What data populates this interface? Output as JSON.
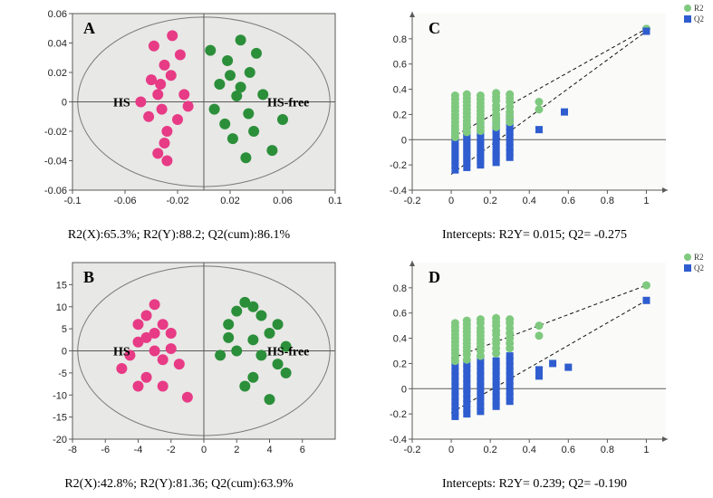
{
  "colors": {
    "bg_scatter": "#e8e8e6",
    "bg_perm": "#fafaf8",
    "pink": "#e73b86",
    "green": "#2b8f3a",
    "green_perm": "#7fc97f",
    "blue_perm": "#2f5dcf",
    "axis": "#5a5a5a",
    "ellipse": "#7a7a7a",
    "dash": "#111111"
  },
  "panelA": {
    "letter": "A",
    "group1_label": "HS",
    "group2_label": "HS-free",
    "caption": "R2(X):65.3%; R2(Y):88.2; Q2(cum):86.1%",
    "xlim": [
      -0.1,
      0.1
    ],
    "ylim": [
      -0.06,
      0.06
    ],
    "xticks": [
      -0.1,
      -0.06,
      -0.02,
      0.02,
      0.06,
      0.1
    ],
    "yticks": [
      -0.06,
      -0.04,
      -0.02,
      0,
      0.02,
      0.04,
      0.06
    ],
    "marker_r": 6,
    "pink_pts": [
      [
        -0.035,
        0.005
      ],
      [
        -0.03,
        -0.028
      ],
      [
        -0.024,
        0.045
      ],
      [
        -0.038,
        0.038
      ],
      [
        -0.032,
        -0.005
      ],
      [
        -0.042,
        -0.01
      ],
      [
        -0.025,
        0.018
      ],
      [
        -0.018,
        0.032
      ],
      [
        -0.028,
        -0.04
      ],
      [
        -0.02,
        -0.012
      ],
      [
        -0.015,
        0.005
      ],
      [
        -0.04,
        0.015
      ],
      [
        -0.035,
        -0.035
      ],
      [
        -0.012,
        -0.003
      ],
      [
        -0.048,
        0.0
      ],
      [
        -0.03,
        0.025
      ],
      [
        -0.033,
        0.012
      ],
      [
        -0.028,
        -0.02
      ]
    ],
    "green_pts": [
      [
        0.025,
        0.004
      ],
      [
        0.018,
        0.028
      ],
      [
        0.034,
        -0.008
      ],
      [
        0.028,
        0.042
      ],
      [
        0.04,
        0.033
      ],
      [
        0.012,
        0.012
      ],
      [
        0.022,
        -0.025
      ],
      [
        0.032,
        -0.038
      ],
      [
        0.008,
        -0.005
      ],
      [
        0.02,
        0.018
      ],
      [
        0.005,
        0.035
      ],
      [
        0.045,
        0.005
      ],
      [
        0.035,
        0.02
      ],
      [
        0.028,
        0.01
      ],
      [
        0.016,
        -0.015
      ],
      [
        0.052,
        -0.033
      ],
      [
        0.06,
        -0.012
      ],
      [
        0.038,
        -0.02
      ]
    ]
  },
  "panelB": {
    "letter": "B",
    "group1_label": "HS",
    "group2_label": "HS-free",
    "caption": "R2(X):42.8%; R2(Y):81.36; Q2(cum):63.9%",
    "xlim": [
      -8,
      8
    ],
    "ylim": [
      -20,
      20
    ],
    "xticks": [
      -8,
      -6,
      -4,
      -2,
      0,
      2,
      4,
      6
    ],
    "yticks": [
      -20,
      -15,
      -10,
      -5,
      0,
      5,
      10,
      15
    ],
    "marker_r": 6,
    "pink_pts": [
      [
        -3.5,
        8
      ],
      [
        -3,
        10.5
      ],
      [
        -4,
        2
      ],
      [
        -2.5,
        6
      ],
      [
        -3,
        0
      ],
      [
        -4.5,
        -1
      ],
      [
        -2,
        4
      ],
      [
        -1.5,
        -3
      ],
      [
        -3.5,
        -6
      ],
      [
        -2.5,
        -2
      ],
      [
        -3,
        4
      ],
      [
        -5,
        -4
      ],
      [
        -4,
        -8
      ],
      [
        -3.5,
        3
      ],
      [
        -2,
        0.5
      ],
      [
        -1,
        -10.5
      ],
      [
        -2.5,
        -8
      ],
      [
        -4,
        6
      ]
    ],
    "green_pts": [
      [
        2.5,
        11
      ],
      [
        3.5,
        8
      ],
      [
        1.5,
        6
      ],
      [
        3,
        2.5
      ],
      [
        4,
        4
      ],
      [
        2,
        0
      ],
      [
        3,
        -6
      ],
      [
        4.5,
        -3
      ],
      [
        1,
        -1
      ],
      [
        2.5,
        -8
      ],
      [
        4,
        -11
      ],
      [
        5,
        1
      ],
      [
        3.5,
        -1
      ],
      [
        2,
        9
      ],
      [
        1.5,
        3
      ],
      [
        4.5,
        6
      ],
      [
        3,
        10
      ],
      [
        5,
        -5
      ]
    ]
  },
  "panelC": {
    "letter": "C",
    "caption": "Intercepts: R2Y= 0.015; Q2= -0.275",
    "xlim": [
      -0.2,
      1.1
    ],
    "ylim": [
      -0.4,
      1.0
    ],
    "xticks": [
      -0.2,
      0,
      0.2,
      0.4,
      0.6,
      0.8,
      1
    ],
    "yticks": [
      -0.4,
      -0.2,
      0,
      0.2,
      0.4,
      0.6,
      0.8
    ],
    "legend": {
      "r2": "R2",
      "q2": "Q2"
    },
    "real": {
      "x": 1.0,
      "r2": 0.88,
      "q2": 0.86
    },
    "r2_intercept": 0.015,
    "q2_intercept": -0.275,
    "columns": [
      {
        "x": 0.02,
        "r2": [
          0.02,
          0.05,
          0.08,
          0.11,
          0.14,
          0.17,
          0.2,
          0.23,
          0.26,
          0.29,
          0.32,
          0.35
        ],
        "q2": [
          -0.24,
          -0.2,
          -0.17,
          -0.14,
          -0.11,
          -0.08,
          -0.05,
          -0.02,
          0.02,
          0.05,
          0.08,
          0.11
        ]
      },
      {
        "x": 0.08,
        "r2": [
          0.06,
          0.09,
          0.12,
          0.15,
          0.18,
          0.21,
          0.24,
          0.27,
          0.3,
          0.33,
          0.36
        ],
        "q2": [
          -0.22,
          -0.18,
          -0.15,
          -0.12,
          -0.09,
          -0.06,
          -0.03,
          0.0,
          0.03,
          0.06,
          0.1,
          0.13
        ]
      },
      {
        "x": 0.15,
        "r2": [
          0.07,
          0.1,
          0.14,
          0.17,
          0.2,
          0.23,
          0.26,
          0.29,
          0.32,
          0.35
        ],
        "q2": [
          -0.2,
          -0.17,
          -0.14,
          -0.11,
          -0.08,
          -0.05,
          -0.02,
          0.01,
          0.05,
          0.08,
          0.12,
          0.15
        ]
      },
      {
        "x": 0.23,
        "r2": [
          0.1,
          0.14,
          0.17,
          0.2,
          0.24,
          0.27,
          0.31,
          0.34,
          0.37
        ],
        "q2": [
          -0.18,
          -0.14,
          -0.11,
          -0.08,
          -0.04,
          -0.01,
          0.03,
          0.07,
          0.1,
          0.14,
          0.17
        ]
      },
      {
        "x": 0.3,
        "r2": [
          0.14,
          0.18,
          0.22,
          0.26,
          0.3,
          0.33,
          0.36
        ],
        "q2": [
          -0.14,
          -0.1,
          -0.06,
          -0.02,
          0.02,
          0.06,
          0.1,
          0.14,
          0.18
        ]
      },
      {
        "x": 0.45,
        "r2": [
          0.24,
          0.3
        ],
        "q2": [
          0.08
        ]
      },
      {
        "x": 0.58,
        "r2": [],
        "q2": [
          0.22
        ]
      }
    ]
  },
  "panelD": {
    "letter": "D",
    "caption": "Intercepts: R2Y= 0.239; Q2= -0.190",
    "xlim": [
      -0.2,
      1.1
    ],
    "ylim": [
      -0.4,
      1.0
    ],
    "xticks": [
      -0.2,
      0,
      0.2,
      0.4,
      0.6,
      0.8,
      1
    ],
    "yticks": [
      -0.4,
      -0.2,
      0,
      0.2,
      0.4,
      0.6,
      0.8
    ],
    "legend": {
      "r2": "R2",
      "q2": "Q2"
    },
    "real": {
      "x": 1.0,
      "r2": 0.82,
      "q2": 0.7
    },
    "r2_intercept": 0.239,
    "q2_intercept": -0.19,
    "columns": [
      {
        "x": 0.02,
        "r2": [
          0.22,
          0.25,
          0.28,
          0.31,
          0.34,
          0.37,
          0.4,
          0.43,
          0.46,
          0.49,
          0.52
        ],
        "q2": [
          -0.22,
          -0.18,
          -0.14,
          -0.1,
          -0.06,
          -0.02,
          0.02,
          0.06,
          0.1,
          0.14,
          0.18
        ]
      },
      {
        "x": 0.08,
        "r2": [
          0.23,
          0.27,
          0.3,
          0.33,
          0.36,
          0.39,
          0.42,
          0.45,
          0.48,
          0.51,
          0.54
        ],
        "q2": [
          -0.2,
          -0.16,
          -0.12,
          -0.08,
          -0.04,
          0.0,
          0.04,
          0.08,
          0.12,
          0.16,
          0.2
        ]
      },
      {
        "x": 0.15,
        "r2": [
          0.26,
          0.3,
          0.33,
          0.36,
          0.39,
          0.42,
          0.45,
          0.48,
          0.52,
          0.55
        ],
        "q2": [
          -0.18,
          -0.14,
          -0.1,
          -0.06,
          -0.02,
          0.02,
          0.06,
          0.1,
          0.14,
          0.18,
          0.22
        ]
      },
      {
        "x": 0.23,
        "r2": [
          0.28,
          0.32,
          0.36,
          0.39,
          0.43,
          0.46,
          0.5,
          0.53,
          0.56
        ],
        "q2": [
          -0.14,
          -0.1,
          -0.06,
          -0.02,
          0.02,
          0.06,
          0.1,
          0.14,
          0.18,
          0.22
        ]
      },
      {
        "x": 0.3,
        "r2": [
          0.32,
          0.36,
          0.4,
          0.44,
          0.48,
          0.52,
          0.55
        ],
        "q2": [
          -0.1,
          -0.06,
          -0.02,
          0.02,
          0.06,
          0.1,
          0.14,
          0.18,
          0.22,
          0.26
        ]
      },
      {
        "x": 0.45,
        "r2": [
          0.42,
          0.5
        ],
        "q2": [
          0.1,
          0.15
        ]
      },
      {
        "x": 0.52,
        "r2": [],
        "q2": [
          0.2
        ]
      },
      {
        "x": 0.6,
        "r2": [],
        "q2": [
          0.17
        ]
      }
    ]
  }
}
